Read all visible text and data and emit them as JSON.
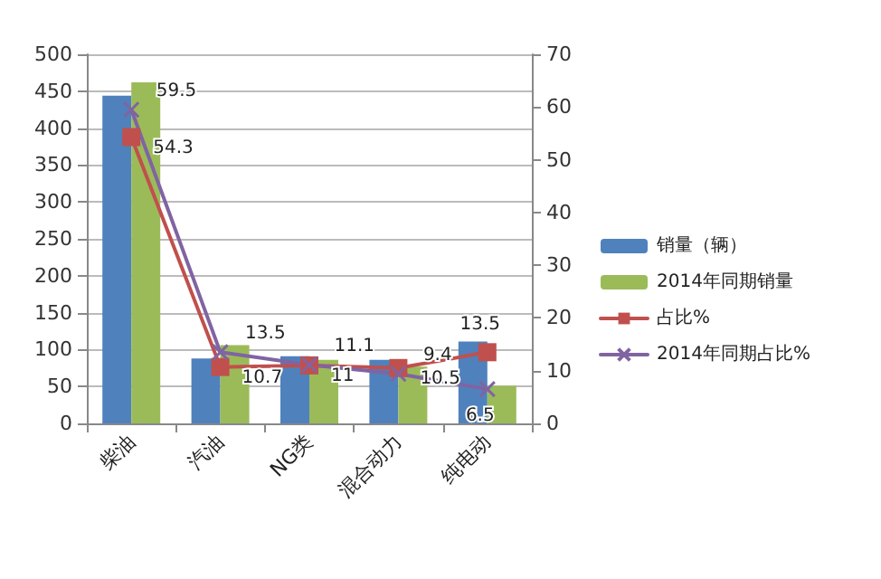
{
  "chart_data": {
    "type": "bar",
    "categories": [
      "柴油",
      "汽油",
      "NG类",
      "混合动力",
      "纯电动"
    ],
    "series": [
      {
        "name": "销量（辆）",
        "color": "#4f81bd",
        "values": [
          444,
          88,
          91,
          86,
          111
        ]
      },
      {
        "name": "2014年同期销量",
        "color": "#9bbb59",
        "values": [
          462,
          106,
          86,
          77,
          51
        ]
      },
      {
        "name": "占比%",
        "type": "line",
        "axis": "y2",
        "color": "#c0504d",
        "marker": "square",
        "values": [
          54.3,
          10.7,
          11,
          10.5,
          13.5
        ],
        "value_labels": [
          "54.3",
          "10.7",
          "11",
          "10.5",
          "13.5"
        ]
      },
      {
        "name": "2014年同期占比%",
        "type": "line",
        "axis": "y2",
        "color": "#8064a2",
        "marker": "cross",
        "values": [
          59.5,
          13.5,
          11.1,
          9.4,
          6.5
        ],
        "value_labels": [
          "59.5",
          "13.5",
          "11.1",
          "9.4",
          "6.5"
        ]
      }
    ],
    "ylim": [
      0,
      500
    ],
    "yticks": [
      0,
      50,
      100,
      150,
      200,
      250,
      300,
      350,
      400,
      450,
      500
    ],
    "y2lim": [
      0,
      70
    ],
    "y2ticks": [
      0,
      10,
      20,
      30,
      40,
      50,
      60,
      70
    ],
    "grid": "y",
    "legend": "right",
    "line_style": "solid"
  }
}
